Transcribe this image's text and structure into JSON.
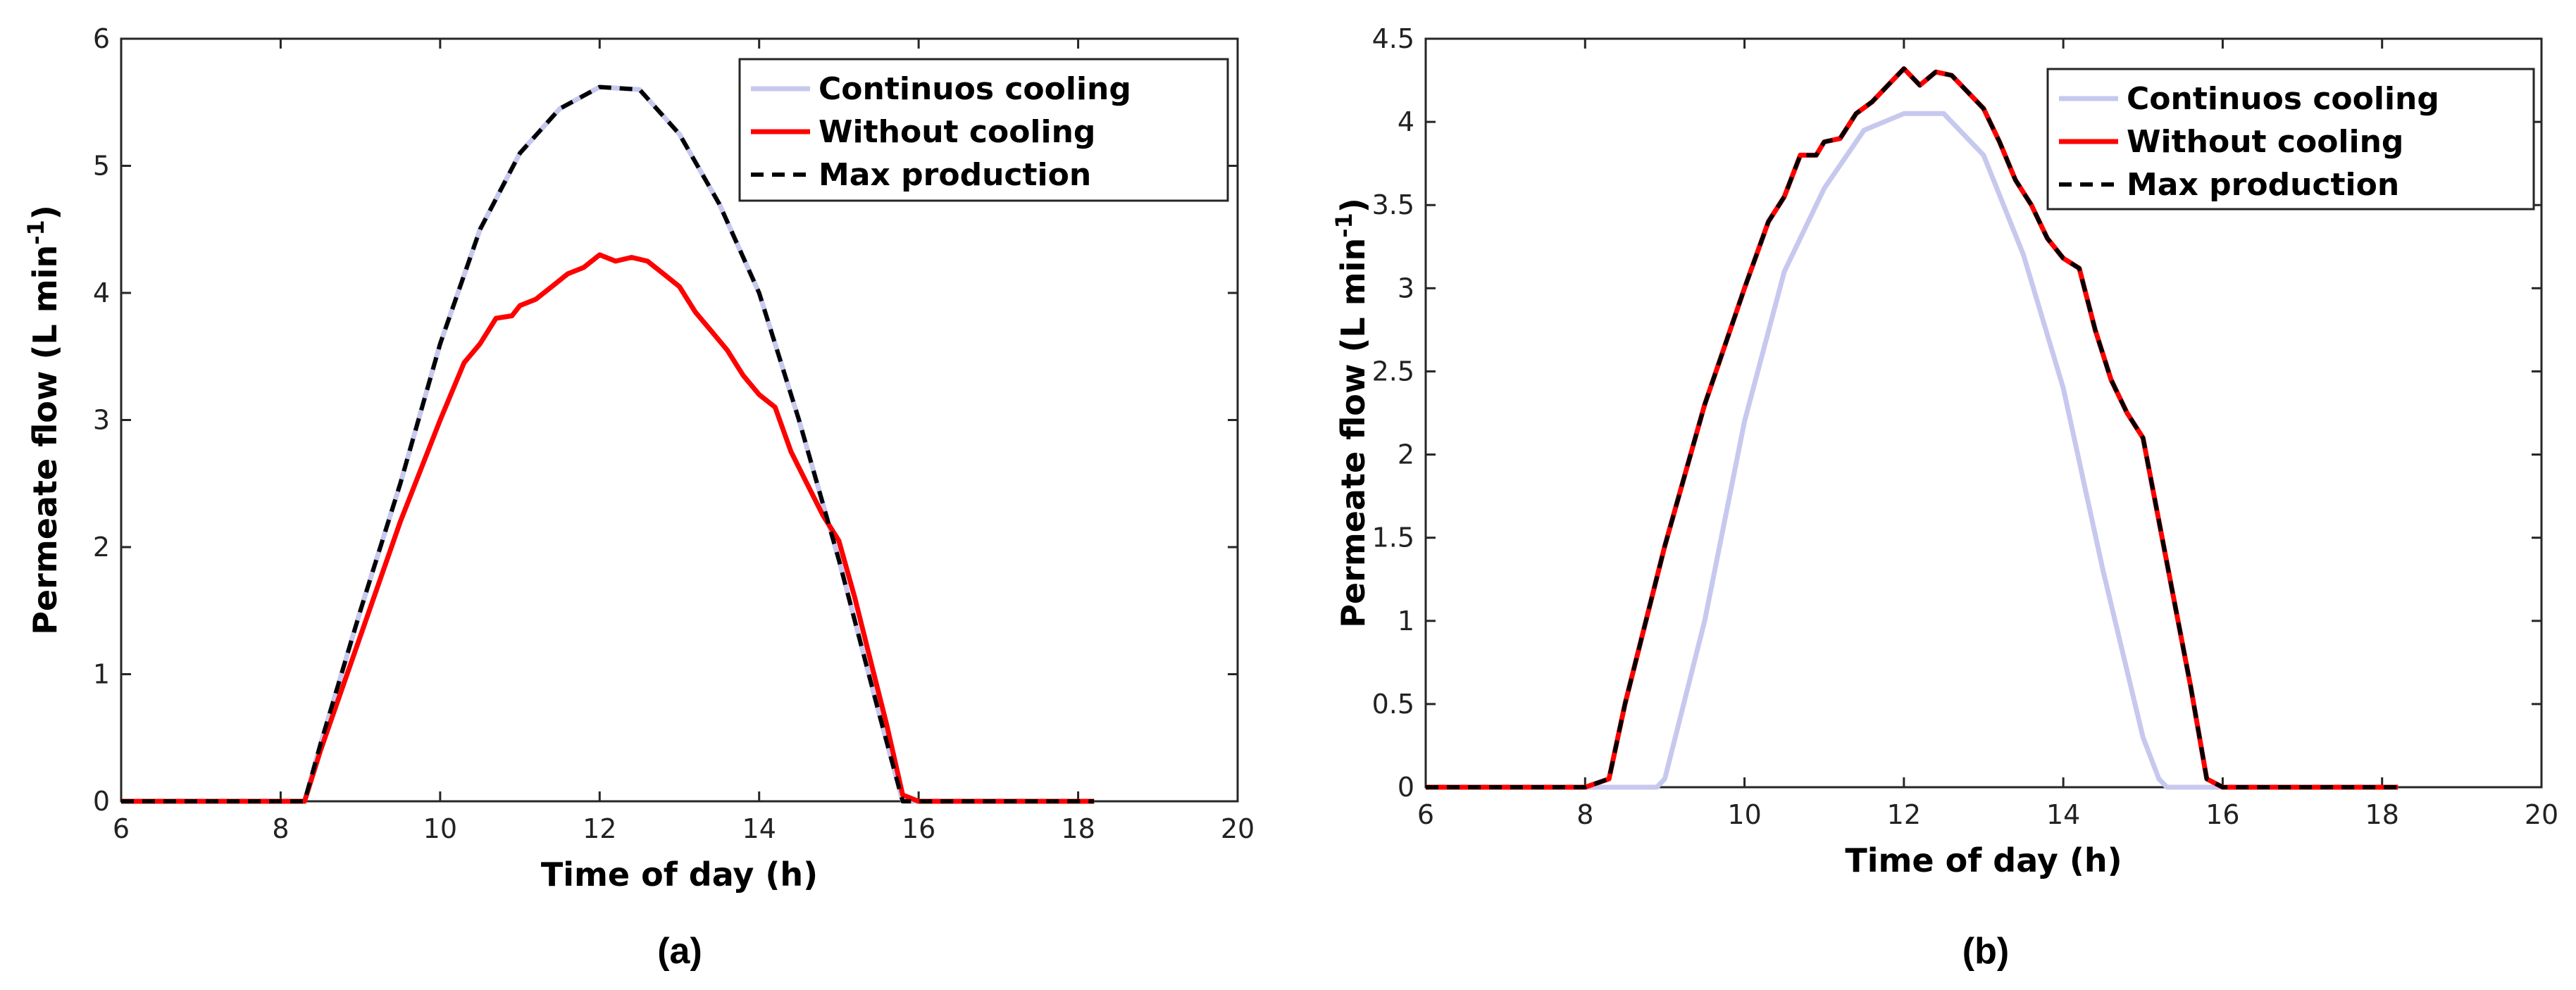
{
  "chart_data": [
    {
      "type": "line",
      "id": "a",
      "caption": "(a)",
      "xlabel": "Time of day (h)",
      "ylabel": "Permeate flow (L min",
      "ylabel_sup": "-1",
      "ylabel_close": ")",
      "xlim": [
        6,
        20
      ],
      "ylim": [
        0,
        6
      ],
      "xticks": [
        6,
        8,
        10,
        12,
        14,
        16,
        18,
        20
      ],
      "xtick_labels": [
        "6",
        "8",
        "10",
        "12",
        "14",
        "16",
        "18",
        "20"
      ],
      "yticks": [
        0,
        1,
        2,
        3,
        4,
        5,
        6
      ],
      "ytick_labels": [
        "0",
        "1",
        "2",
        "3",
        "4",
        "5",
        "6"
      ],
      "legend_position": "top-right",
      "series": [
        {
          "name": "Continuos cooling",
          "color": "#c7c8ee",
          "style": "solid",
          "x": [
            6.0,
            8.0,
            8.3,
            8.5,
            9.0,
            9.5,
            10.0,
            10.5,
            11.0,
            11.5,
            12.0,
            12.5,
            13.0,
            13.5,
            14.0,
            14.5,
            15.0,
            15.5,
            15.8,
            16.0,
            18.2
          ],
          "y": [
            0,
            0,
            0,
            0.45,
            1.5,
            2.5,
            3.6,
            4.5,
            5.1,
            5.45,
            5.62,
            5.6,
            5.25,
            4.7,
            4.0,
            3.0,
            1.9,
            0.7,
            0,
            0,
            0
          ]
        },
        {
          "name": "Without cooling",
          "color": "#ff0000",
          "style": "solid",
          "x": [
            6.0,
            8.0,
            8.3,
            8.5,
            9.0,
            9.5,
            10.0,
            10.3,
            10.5,
            10.7,
            10.9,
            11.0,
            11.2,
            11.4,
            11.6,
            11.8,
            12.0,
            12.2,
            12.4,
            12.6,
            12.8,
            13.0,
            13.2,
            13.4,
            13.6,
            13.8,
            14.0,
            14.2,
            14.4,
            14.6,
            14.8,
            15.0,
            15.2,
            15.4,
            15.6,
            15.8,
            16.0,
            18.2
          ],
          "y": [
            0,
            0,
            0,
            0.4,
            1.3,
            2.2,
            3.0,
            3.45,
            3.6,
            3.8,
            3.82,
            3.9,
            3.95,
            4.05,
            4.15,
            4.2,
            4.3,
            4.25,
            4.28,
            4.25,
            4.15,
            4.05,
            3.85,
            3.7,
            3.55,
            3.35,
            3.2,
            3.1,
            2.75,
            2.5,
            2.25,
            2.05,
            1.6,
            1.1,
            0.6,
            0.05,
            0,
            0
          ]
        },
        {
          "name": "Max production",
          "color": "#000000",
          "style": "dashed",
          "x": [
            6.0,
            8.0,
            8.3,
            8.5,
            9.0,
            9.5,
            10.0,
            10.5,
            11.0,
            11.5,
            12.0,
            12.5,
            13.0,
            13.5,
            14.0,
            14.5,
            15.0,
            15.5,
            15.8,
            16.0,
            18.2
          ],
          "y": [
            0,
            0,
            0,
            0.45,
            1.5,
            2.5,
            3.6,
            4.5,
            5.1,
            5.45,
            5.62,
            5.6,
            5.25,
            4.7,
            4.0,
            3.0,
            1.9,
            0.7,
            0,
            0,
            0
          ]
        }
      ]
    },
    {
      "type": "line",
      "id": "b",
      "caption": "(b)",
      "xlabel": "Time of day (h)",
      "ylabel": "Permeate flow (L min",
      "ylabel_sup": "-1",
      "ylabel_close": ")",
      "xlim": [
        6,
        20
      ],
      "ylim": [
        0,
        4.5
      ],
      "xticks": [
        6,
        8,
        10,
        12,
        14,
        16,
        18,
        20
      ],
      "xtick_labels": [
        "6",
        "8",
        "10",
        "12",
        "14",
        "16",
        "18",
        "20"
      ],
      "yticks": [
        0,
        0.5,
        1,
        1.5,
        2,
        2.5,
        3,
        3.5,
        4,
        4.5
      ],
      "ytick_labels": [
        "0",
        "0.5",
        "1",
        "1.5",
        "2",
        "2.5",
        "3",
        "3.5",
        "4",
        "4.5"
      ],
      "legend_position": "top-right",
      "series": [
        {
          "name": "Continuos cooling",
          "color": "#c7c8ee",
          "style": "solid",
          "x": [
            6.0,
            8.9,
            9.0,
            9.5,
            10.0,
            10.5,
            11.0,
            11.5,
            12.0,
            12.5,
            13.0,
            13.5,
            14.0,
            14.5,
            15.0,
            15.2,
            15.3,
            18.2
          ],
          "y": [
            0,
            0,
            0.05,
            1.0,
            2.2,
            3.1,
            3.6,
            3.95,
            4.05,
            4.05,
            3.8,
            3.2,
            2.4,
            1.3,
            0.3,
            0.05,
            0,
            0
          ]
        },
        {
          "name": "Without cooling",
          "color": "#ff0000",
          "style": "solid",
          "x": [
            6.0,
            8.0,
            8.3,
            8.5,
            9.0,
            9.5,
            10.0,
            10.3,
            10.5,
            10.7,
            10.9,
            11.0,
            11.2,
            11.4,
            11.6,
            11.8,
            12.0,
            12.2,
            12.4,
            12.6,
            12.8,
            13.0,
            13.2,
            13.4,
            13.6,
            13.8,
            14.0,
            14.2,
            14.4,
            14.6,
            14.8,
            15.0,
            15.2,
            15.4,
            15.6,
            15.8,
            16.0,
            18.2
          ],
          "y": [
            0,
            0,
            0.05,
            0.5,
            1.45,
            2.3,
            3.0,
            3.4,
            3.55,
            3.8,
            3.8,
            3.88,
            3.9,
            4.05,
            4.12,
            4.22,
            4.32,
            4.22,
            4.3,
            4.28,
            4.18,
            4.08,
            3.88,
            3.65,
            3.5,
            3.3,
            3.18,
            3.12,
            2.75,
            2.45,
            2.25,
            2.1,
            1.6,
            1.1,
            0.6,
            0.05,
            0,
            0
          ]
        },
        {
          "name": "Max production",
          "color": "#000000",
          "style": "dashed",
          "x": [
            6.0,
            8.0,
            8.3,
            8.5,
            9.0,
            9.5,
            10.0,
            10.3,
            10.5,
            10.7,
            10.9,
            11.0,
            11.2,
            11.4,
            11.6,
            11.8,
            12.0,
            12.2,
            12.4,
            12.6,
            12.8,
            13.0,
            13.2,
            13.4,
            13.6,
            13.8,
            14.0,
            14.2,
            14.4,
            14.6,
            14.8,
            15.0,
            15.2,
            15.4,
            15.6,
            15.8,
            16.0,
            18.2
          ],
          "y": [
            0,
            0,
            0.05,
            0.5,
            1.45,
            2.3,
            3.0,
            3.4,
            3.55,
            3.8,
            3.8,
            3.88,
            3.9,
            4.05,
            4.12,
            4.22,
            4.32,
            4.22,
            4.3,
            4.28,
            4.18,
            4.08,
            3.88,
            3.65,
            3.5,
            3.3,
            3.18,
            3.12,
            2.75,
            2.45,
            2.25,
            2.1,
            1.6,
            1.1,
            0.6,
            0.05,
            0,
            0
          ]
        }
      ]
    }
  ]
}
